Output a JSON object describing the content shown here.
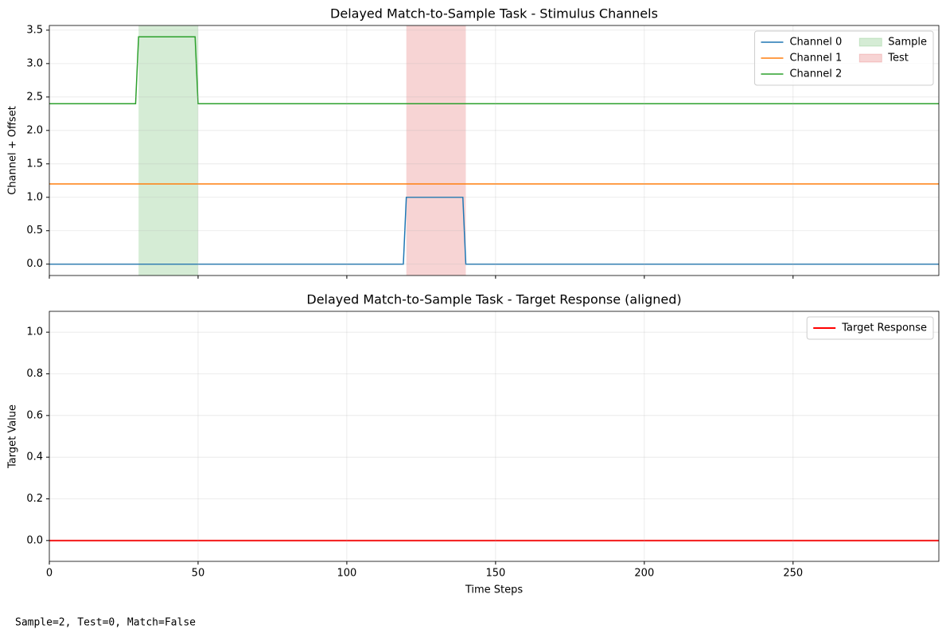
{
  "chart_data": [
    {
      "type": "line",
      "title": "Delayed Match-to-Sample Task - Stimulus Channels",
      "ylabel": "Channel + Offset",
      "series": [
        {
          "name": "Channel 0",
          "color": "#1f77b4",
          "x": [
            0,
            119,
            120,
            139,
            140,
            299
          ],
          "values": [
            0,
            0,
            1,
            1,
            0,
            0
          ]
        },
        {
          "name": "Channel 1",
          "color": "#ff7f0e",
          "x": [
            0,
            299
          ],
          "values": [
            1.2,
            1.2
          ]
        },
        {
          "name": "Channel 2",
          "color": "#2ca02c",
          "x": [
            0,
            29,
            30,
            49,
            50,
            299
          ],
          "values": [
            2.4,
            2.4,
            3.4,
            3.4,
            2.4,
            2.4
          ]
        }
      ],
      "spans": [
        {
          "name": "Sample",
          "color": "#2ca02c",
          "start": 30,
          "end": 50
        },
        {
          "name": "Test",
          "color": "#d62728",
          "start": 120,
          "end": 140
        }
      ],
      "xlim": [
        0,
        299
      ],
      "xticks": [
        0,
        50,
        100,
        150,
        200,
        250
      ],
      "show_xtick_labels": false,
      "ylim": [
        -0.17,
        3.57
      ],
      "yticks": [
        {
          "value": 0,
          "label": "0.0"
        },
        0.5,
        {
          "value": 1,
          "label": "1.0"
        },
        1.5,
        {
          "value": 2,
          "label": "2.0"
        },
        2.5,
        {
          "value": 3,
          "label": "3.0"
        },
        3.5
      ],
      "grid": true,
      "legend": "upper right",
      "legend_columns": 2
    },
    {
      "type": "line",
      "title": "Delayed Match-to-Sample Task - Target Response (aligned)",
      "ylabel": "Target Value",
      "xlabel": "Time Steps",
      "series": [
        {
          "name": "Target Response",
          "color": "red",
          "width": 2,
          "x": [
            0,
            299
          ],
          "values": [
            0,
            0
          ]
        }
      ],
      "xlim": [
        0,
        299
      ],
      "xticks": [
        0,
        50,
        100,
        150,
        200,
        250
      ],
      "show_xtick_labels": true,
      "ylim": [
        -0.1,
        1.1
      ],
      "yticks": [
        {
          "value": 0,
          "label": "0.0"
        },
        0.2,
        0.4,
        0.6,
        0.8,
        {
          "value": 1,
          "label": "1.0"
        }
      ],
      "grid": true,
      "legend": "upper right",
      "legend_columns": 1,
      "annotation": "Sample=2, Test=0, Match=False"
    }
  ]
}
